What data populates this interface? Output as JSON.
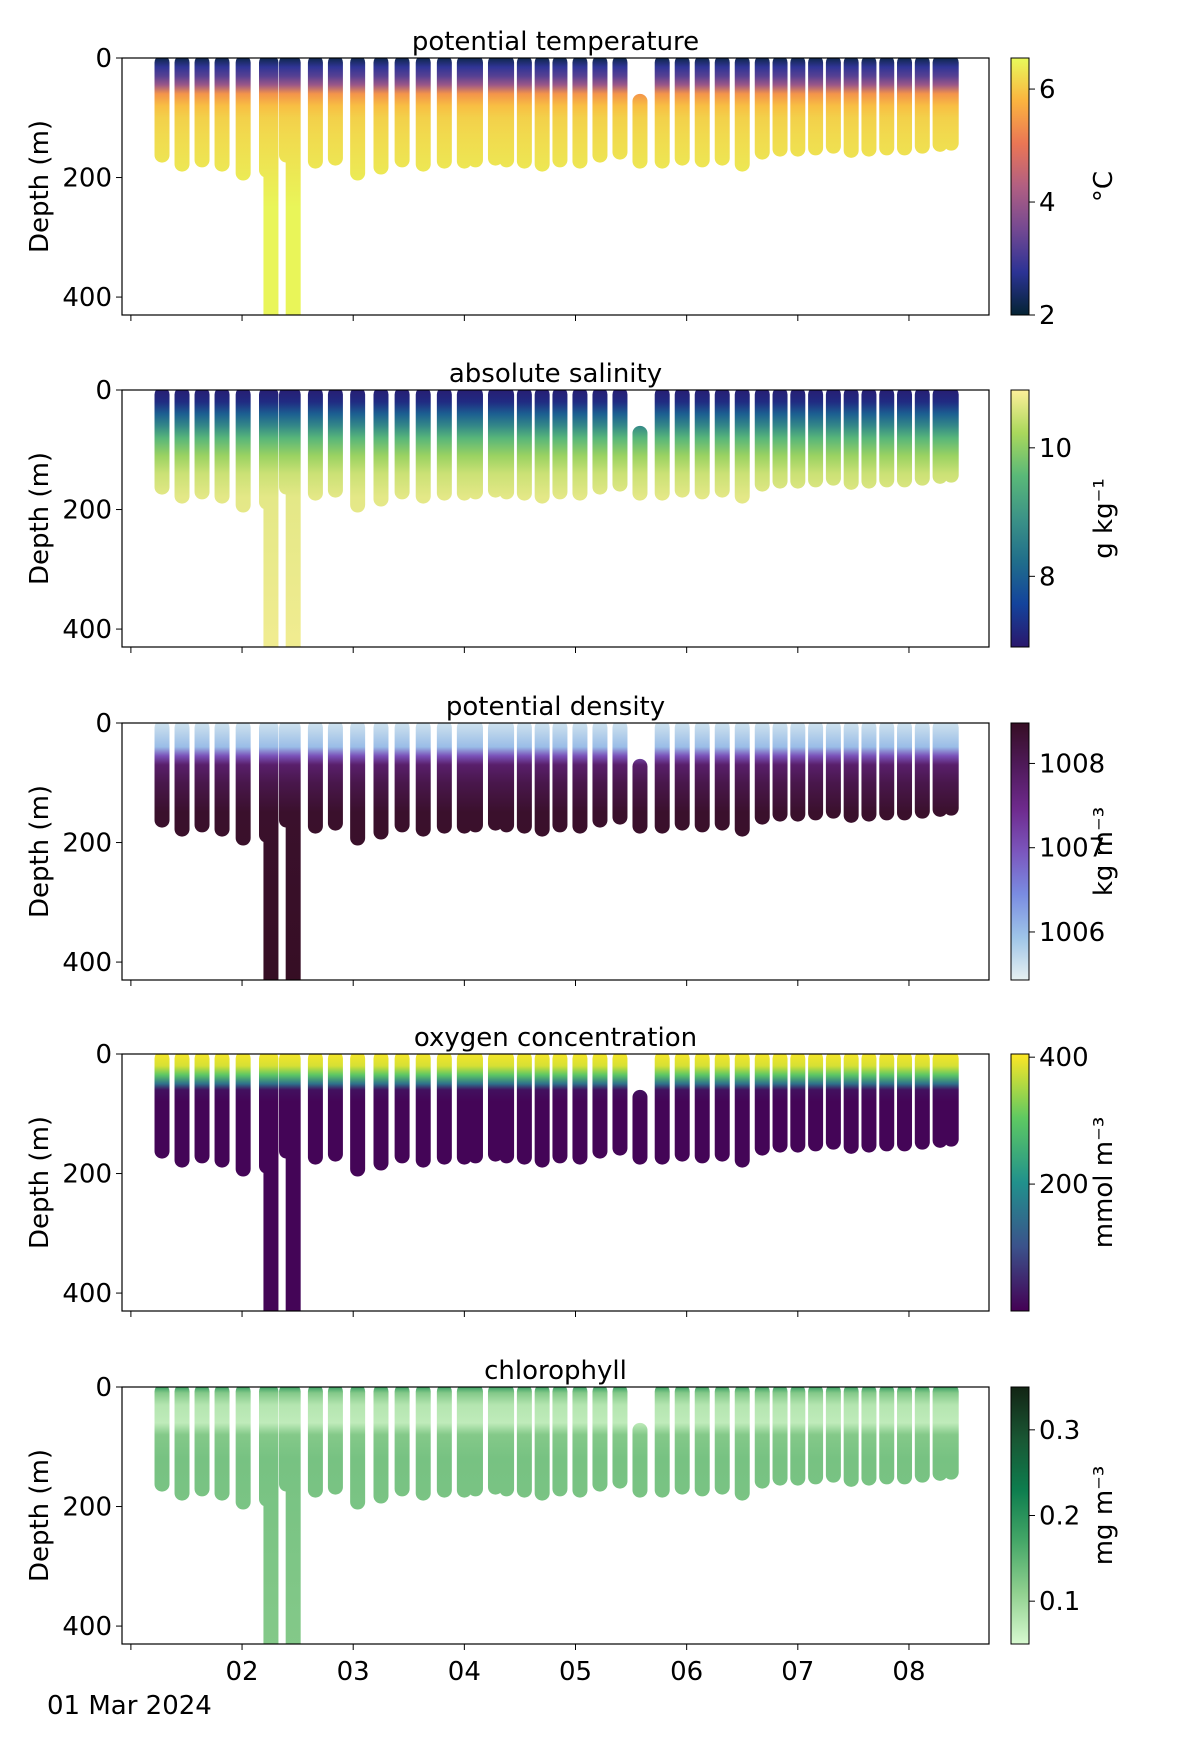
{
  "chart_data": [
    {
      "type": "profile",
      "title": "potential temperature",
      "ylabel": "Depth (m)",
      "x": [
        1.28,
        1.46,
        1.64,
        1.82,
        2.01,
        2.22,
        2.26,
        2.4,
        2.46,
        2.66,
        2.84,
        3.04,
        3.25,
        3.44,
        3.63,
        3.82,
        4.0,
        4.1,
        4.28,
        4.38,
        4.54,
        4.7,
        4.86,
        5.04,
        5.22,
        5.4,
        5.58,
        5.78,
        5.96,
        6.14,
        6.32,
        6.5,
        6.68,
        6.84,
        7.0,
        7.16,
        7.32,
        7.48,
        7.64,
        7.8,
        7.96,
        8.12,
        8.28,
        8.38
      ],
      "depth_min": [
        0,
        0,
        0,
        0,
        0,
        0,
        0,
        0,
        0,
        0,
        0,
        0,
        0,
        0,
        0,
        0,
        0,
        0,
        0,
        0,
        0,
        0,
        0,
        0,
        0,
        0,
        65,
        0,
        0,
        0,
        0,
        0,
        0,
        0,
        0,
        0,
        0,
        0,
        0,
        0,
        0,
        0,
        0,
        0
      ],
      "depth_max": [
        170,
        185,
        178,
        185,
        200,
        195,
        440,
        170,
        440,
        180,
        175,
        200,
        190,
        178,
        185,
        180,
        180,
        178,
        175,
        178,
        180,
        185,
        178,
        180,
        170,
        165,
        180,
        180,
        175,
        178,
        175,
        185,
        165,
        160,
        160,
        158,
        155,
        162,
        160,
        158,
        158,
        155,
        152,
        150
      ],
      "xlim": [
        0.92,
        8.72
      ],
      "xticks": [
        {
          "value": 1,
          "label": null
        },
        {
          "value": 2,
          "label": "02"
        },
        {
          "value": 3,
          "label": "03"
        },
        {
          "value": 4,
          "label": "04"
        },
        {
          "value": 5,
          "label": "05"
        },
        {
          "value": 6,
          "label": "06"
        },
        {
          "value": 7,
          "label": "07"
        },
        {
          "value": 8,
          "label": "08"
        }
      ],
      "ylim": [
        430,
        0
      ],
      "yticks": [
        0,
        200,
        400
      ],
      "profile_depths": [
        0,
        15,
        30,
        45,
        60,
        80,
        100,
        130,
        170,
        250,
        440
      ],
      "profile_values": [
        2.2,
        2.8,
        3.2,
        4.0,
        5.4,
        5.9,
        6.1,
        6.2,
        6.3,
        6.5,
        6.5
      ],
      "colorbar": {
        "label": "°C",
        "lim": [
          2,
          6.55
        ],
        "ticks": [
          2,
          4,
          6
        ],
        "colors": [
          "#042333",
          "#2c3395",
          "#744992",
          "#b15f82",
          "#eb7655",
          "#fbb43f",
          "#e8fa5b"
        ]
      }
    },
    {
      "type": "profile",
      "title": "absolute salinity",
      "ylabel": "Depth (m)",
      "x": [
        1.28,
        1.46,
        1.64,
        1.82,
        2.01,
        2.22,
        2.26,
        2.4,
        2.46,
        2.66,
        2.84,
        3.04,
        3.25,
        3.44,
        3.63,
        3.82,
        4.0,
        4.1,
        4.28,
        4.38,
        4.54,
        4.7,
        4.86,
        5.04,
        5.22,
        5.4,
        5.58,
        5.78,
        5.96,
        6.14,
        6.32,
        6.5,
        6.68,
        6.84,
        7.0,
        7.16,
        7.32,
        7.48,
        7.64,
        7.8,
        7.96,
        8.12,
        8.28,
        8.38
      ],
      "depth_min": [
        0,
        0,
        0,
        0,
        0,
        0,
        0,
        0,
        0,
        0,
        0,
        0,
        0,
        0,
        0,
        0,
        0,
        0,
        0,
        0,
        0,
        0,
        0,
        0,
        0,
        0,
        65,
        0,
        0,
        0,
        0,
        0,
        0,
        0,
        0,
        0,
        0,
        0,
        0,
        0,
        0,
        0,
        0,
        0
      ],
      "depth_max": [
        170,
        185,
        178,
        185,
        200,
        195,
        440,
        170,
        440,
        180,
        175,
        200,
        190,
        178,
        185,
        180,
        180,
        178,
        175,
        178,
        180,
        185,
        178,
        180,
        170,
        165,
        180,
        180,
        175,
        178,
        175,
        185,
        165,
        160,
        160,
        158,
        155,
        162,
        160,
        158,
        158,
        155,
        152,
        150
      ],
      "xlim": [
        0.92,
        8.72
      ],
      "xticks": [
        {
          "value": 1,
          "label": null
        },
        {
          "value": 2,
          "label": "02"
        },
        {
          "value": 3,
          "label": "03"
        },
        {
          "value": 4,
          "label": "04"
        },
        {
          "value": 5,
          "label": "05"
        },
        {
          "value": 6,
          "label": "06"
        },
        {
          "value": 7,
          "label": "07"
        },
        {
          "value": 8,
          "label": "08"
        }
      ],
      "ylim": [
        430,
        0
      ],
      "yticks": [
        0,
        200,
        400
      ],
      "profile_depths": [
        0,
        20,
        40,
        60,
        80,
        110,
        140,
        180,
        440
      ],
      "profile_values": [
        7.0,
        7.2,
        8.0,
        8.7,
        9.5,
        10.1,
        10.5,
        10.7,
        10.8
      ],
      "colorbar": {
        "label": "g kg⁻¹",
        "lim": [
          6.9,
          10.9
        ],
        "ticks": [
          8,
          10
        ],
        "colors": [
          "#2a186c",
          "#14439c",
          "#206e8b",
          "#3c9387",
          "#5ab978",
          "#aad85c",
          "#fdef9a"
        ]
      }
    },
    {
      "type": "profile",
      "title": "potential density",
      "ylabel": "Depth (m)",
      "x": [
        1.28,
        1.46,
        1.64,
        1.82,
        2.01,
        2.22,
        2.26,
        2.4,
        2.46,
        2.66,
        2.84,
        3.04,
        3.25,
        3.44,
        3.63,
        3.82,
        4.0,
        4.1,
        4.28,
        4.38,
        4.54,
        4.7,
        4.86,
        5.04,
        5.22,
        5.4,
        5.58,
        5.78,
        5.96,
        6.14,
        6.32,
        6.5,
        6.68,
        6.84,
        7.0,
        7.16,
        7.32,
        7.48,
        7.64,
        7.8,
        7.96,
        8.12,
        8.28,
        8.38
      ],
      "depth_min": [
        0,
        0,
        0,
        0,
        0,
        0,
        0,
        0,
        0,
        0,
        0,
        0,
        0,
        0,
        0,
        0,
        0,
        0,
        0,
        0,
        0,
        0,
        0,
        0,
        0,
        0,
        65,
        0,
        0,
        0,
        0,
        0,
        0,
        0,
        0,
        0,
        0,
        0,
        0,
        0,
        0,
        0,
        0,
        0
      ],
      "depth_max": [
        170,
        185,
        178,
        185,
        200,
        195,
        440,
        170,
        440,
        180,
        175,
        200,
        190,
        178,
        185,
        180,
        180,
        178,
        175,
        178,
        180,
        185,
        178,
        180,
        170,
        165,
        180,
        180,
        175,
        178,
        175,
        185,
        165,
        160,
        160,
        158,
        155,
        162,
        160,
        158,
        158,
        155,
        152,
        150
      ],
      "xlim": [
        0.92,
        8.72
      ],
      "xticks": [
        {
          "value": 1,
          "label": null
        },
        {
          "value": 2,
          "label": "02"
        },
        {
          "value": 3,
          "label": "03"
        },
        {
          "value": 4,
          "label": "04"
        },
        {
          "value": 5,
          "label": "05"
        },
        {
          "value": 6,
          "label": "06"
        },
        {
          "value": 7,
          "label": "07"
        },
        {
          "value": 8,
          "label": "08"
        }
      ],
      "ylim": [
        430,
        0
      ],
      "yticks": [
        0,
        200,
        400
      ],
      "profile_depths": [
        0,
        40,
        55,
        70,
        100,
        150,
        440
      ],
      "profile_values": [
        1005.6,
        1006.0,
        1007.0,
        1007.8,
        1008.1,
        1008.4,
        1008.5
      ],
      "colorbar": {
        "label": "kg m⁻³",
        "lim": [
          1005.43,
          1008.48
        ],
        "ticks": [
          1006,
          1007,
          1008
        ],
        "colors": [
          "#e6f1f1",
          "#9ec4e8",
          "#7a8ce2",
          "#7b56bd",
          "#6e2a8d",
          "#4f1a5a",
          "#360e24"
        ]
      }
    },
    {
      "type": "profile",
      "title": "oxygen concentration",
      "ylabel": "Depth (m)",
      "x": [
        1.28,
        1.46,
        1.64,
        1.82,
        2.01,
        2.22,
        2.26,
        2.4,
        2.46,
        2.66,
        2.84,
        3.04,
        3.25,
        3.44,
        3.63,
        3.82,
        4.0,
        4.1,
        4.28,
        4.38,
        4.54,
        4.7,
        4.86,
        5.04,
        5.22,
        5.4,
        5.58,
        5.78,
        5.96,
        6.14,
        6.32,
        6.5,
        6.68,
        6.84,
        7.0,
        7.16,
        7.32,
        7.48,
        7.64,
        7.8,
        7.96,
        8.12,
        8.28,
        8.38
      ],
      "depth_min": [
        0,
        0,
        0,
        0,
        0,
        0,
        0,
        0,
        0,
        0,
        0,
        0,
        0,
        0,
        0,
        0,
        0,
        0,
        0,
        0,
        0,
        0,
        0,
        0,
        0,
        0,
        65,
        0,
        0,
        0,
        0,
        0,
        0,
        0,
        0,
        0,
        0,
        0,
        0,
        0,
        0,
        0,
        0,
        0
      ],
      "depth_max": [
        170,
        185,
        178,
        185,
        200,
        195,
        440,
        170,
        440,
        180,
        175,
        200,
        190,
        178,
        185,
        180,
        180,
        178,
        175,
        178,
        180,
        185,
        178,
        180,
        170,
        165,
        180,
        180,
        175,
        178,
        175,
        185,
        165,
        160,
        160,
        158,
        155,
        162,
        160,
        158,
        158,
        155,
        152,
        150
      ],
      "xlim": [
        0.92,
        8.72
      ],
      "xticks": [
        {
          "value": 1,
          "label": null
        },
        {
          "value": 2,
          "label": "02"
        },
        {
          "value": 3,
          "label": "03"
        },
        {
          "value": 4,
          "label": "04"
        },
        {
          "value": 5,
          "label": "05"
        },
        {
          "value": 6,
          "label": "06"
        },
        {
          "value": 7,
          "label": "07"
        },
        {
          "value": 8,
          "label": "08"
        }
      ],
      "ylim": [
        430,
        0
      ],
      "yticks": [
        0,
        200,
        400
      ],
      "profile_depths": [
        0,
        20,
        35,
        50,
        60,
        80,
        440
      ],
      "profile_values": [
        400,
        380,
        300,
        150,
        20,
        5,
        5
      ],
      "colorbar": {
        "label": "mmol m⁻³",
        "lim": [
          0,
          405
        ],
        "ticks": [
          200,
          400
        ],
        "colors": [
          "#440154",
          "#3b528b",
          "#21918c",
          "#5ec962",
          "#fde725"
        ]
      }
    },
    {
      "type": "profile",
      "title": "chlorophyll",
      "ylabel": "Depth (m)",
      "x_offset_label": "01 Mar 2024",
      "x": [
        1.28,
        1.46,
        1.64,
        1.82,
        2.01,
        2.22,
        2.26,
        2.4,
        2.46,
        2.66,
        2.84,
        3.04,
        3.25,
        3.44,
        3.63,
        3.82,
        4.0,
        4.1,
        4.28,
        4.38,
        4.54,
        4.7,
        4.86,
        5.04,
        5.22,
        5.4,
        5.58,
        5.78,
        5.96,
        6.14,
        6.32,
        6.5,
        6.68,
        6.84,
        7.0,
        7.16,
        7.32,
        7.48,
        7.64,
        7.8,
        7.96,
        8.12,
        8.28,
        8.38
      ],
      "depth_min": [
        0,
        0,
        0,
        0,
        0,
        0,
        0,
        0,
        0,
        0,
        0,
        0,
        0,
        0,
        0,
        0,
        0,
        0,
        0,
        0,
        0,
        0,
        0,
        0,
        0,
        0,
        65,
        0,
        0,
        0,
        0,
        0,
        0,
        0,
        0,
        0,
        0,
        0,
        0,
        0,
        0,
        0,
        0,
        0
      ],
      "depth_max": [
        170,
        185,
        178,
        185,
        200,
        195,
        440,
        170,
        440,
        180,
        175,
        200,
        190,
        178,
        185,
        180,
        180,
        178,
        175,
        178,
        180,
        185,
        178,
        180,
        170,
        165,
        180,
        180,
        175,
        178,
        175,
        185,
        165,
        160,
        160,
        158,
        155,
        162,
        160,
        158,
        158,
        155,
        152,
        150
      ],
      "xlim": [
        0.92,
        8.72
      ],
      "xticks": [
        {
          "value": 1,
          "label": null
        },
        {
          "value": 2,
          "label": "02"
        },
        {
          "value": 3,
          "label": "03"
        },
        {
          "value": 4,
          "label": "04"
        },
        {
          "value": 5,
          "label": "05"
        },
        {
          "value": 6,
          "label": "06"
        },
        {
          "value": 7,
          "label": "07"
        },
        {
          "value": 8,
          "label": "08"
        }
      ],
      "ylim": [
        430,
        0
      ],
      "yticks": [
        0,
        200,
        400
      ],
      "profile_depths": [
        0,
        10,
        30,
        60,
        80,
        120,
        440
      ],
      "profile_values": [
        0.18,
        0.12,
        0.08,
        0.07,
        0.12,
        0.13,
        0.12
      ],
      "colorbar": {
        "label": "mg m⁻³",
        "lim": [
          0.05,
          0.35
        ],
        "ticks": [
          0.1,
          0.2,
          0.3
        ],
        "colors": [
          "#d7f9d0",
          "#90d08f",
          "#45a768",
          "#0d7d4e",
          "#195633",
          "#122414"
        ]
      }
    }
  ]
}
